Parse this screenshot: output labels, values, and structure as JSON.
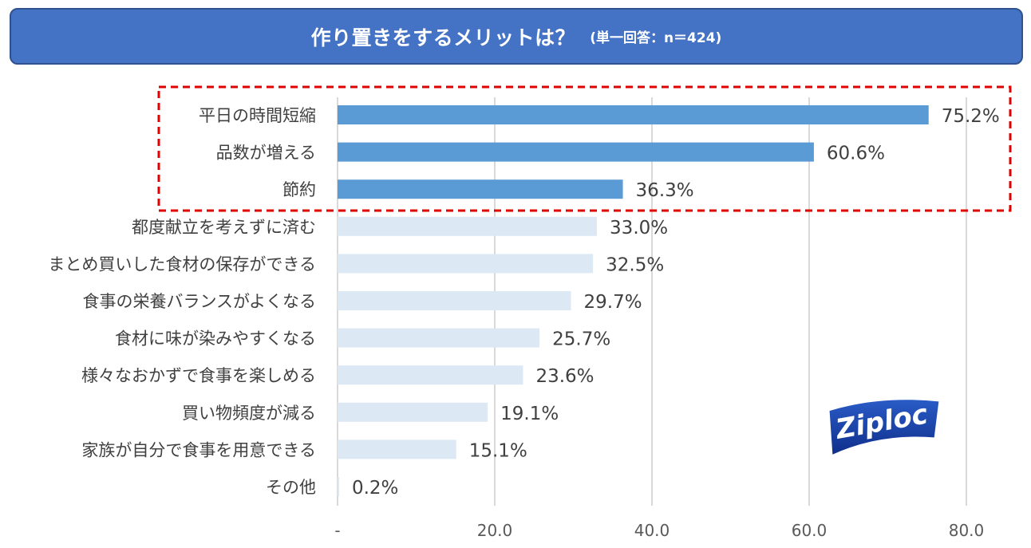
{
  "title": {
    "main": "作り置きをするメリットは？",
    "sub": "(単一回答：n＝424)"
  },
  "logo": {
    "text": "Ziploc"
  },
  "colors": {
    "title_bg": "#4472c4",
    "highlight_bar": "#5b9bd5",
    "normal_bar": "#dde8f5",
    "highlight_box": "#e00000",
    "grid": "#d9d9d9"
  },
  "chart_data": {
    "type": "bar",
    "orientation": "horizontal",
    "categories": [
      "平日の時間短縮",
      "品数が増える",
      "節約",
      "都度献立を考えずに済む",
      "まとめ買いした食材の保存ができる",
      "食事の栄養バランスがよくなる",
      "食材に味が染みやすくなる",
      "様々なおかずで食事を楽しめる",
      "買い物頻度が減る",
      "家族が自分で食事を用意できる",
      "その他"
    ],
    "values": [
      75.2,
      60.6,
      36.3,
      33.0,
      32.5,
      29.7,
      25.7,
      23.6,
      19.1,
      15.1,
      0.2
    ],
    "value_labels": [
      "75.2%",
      "60.6%",
      "36.3%",
      "33.0%",
      "32.5%",
      "29.7%",
      "25.7%",
      "23.6%",
      "19.1%",
      "15.1%",
      "0.2%"
    ],
    "highlighted_count": 3,
    "xlim": [
      0,
      80
    ],
    "ticks": [
      0,
      20,
      40,
      60,
      80
    ],
    "tick_labels": [
      "-",
      "20.0",
      "40.0",
      "60.0",
      "80.0"
    ],
    "grid": true,
    "legend": "none"
  }
}
